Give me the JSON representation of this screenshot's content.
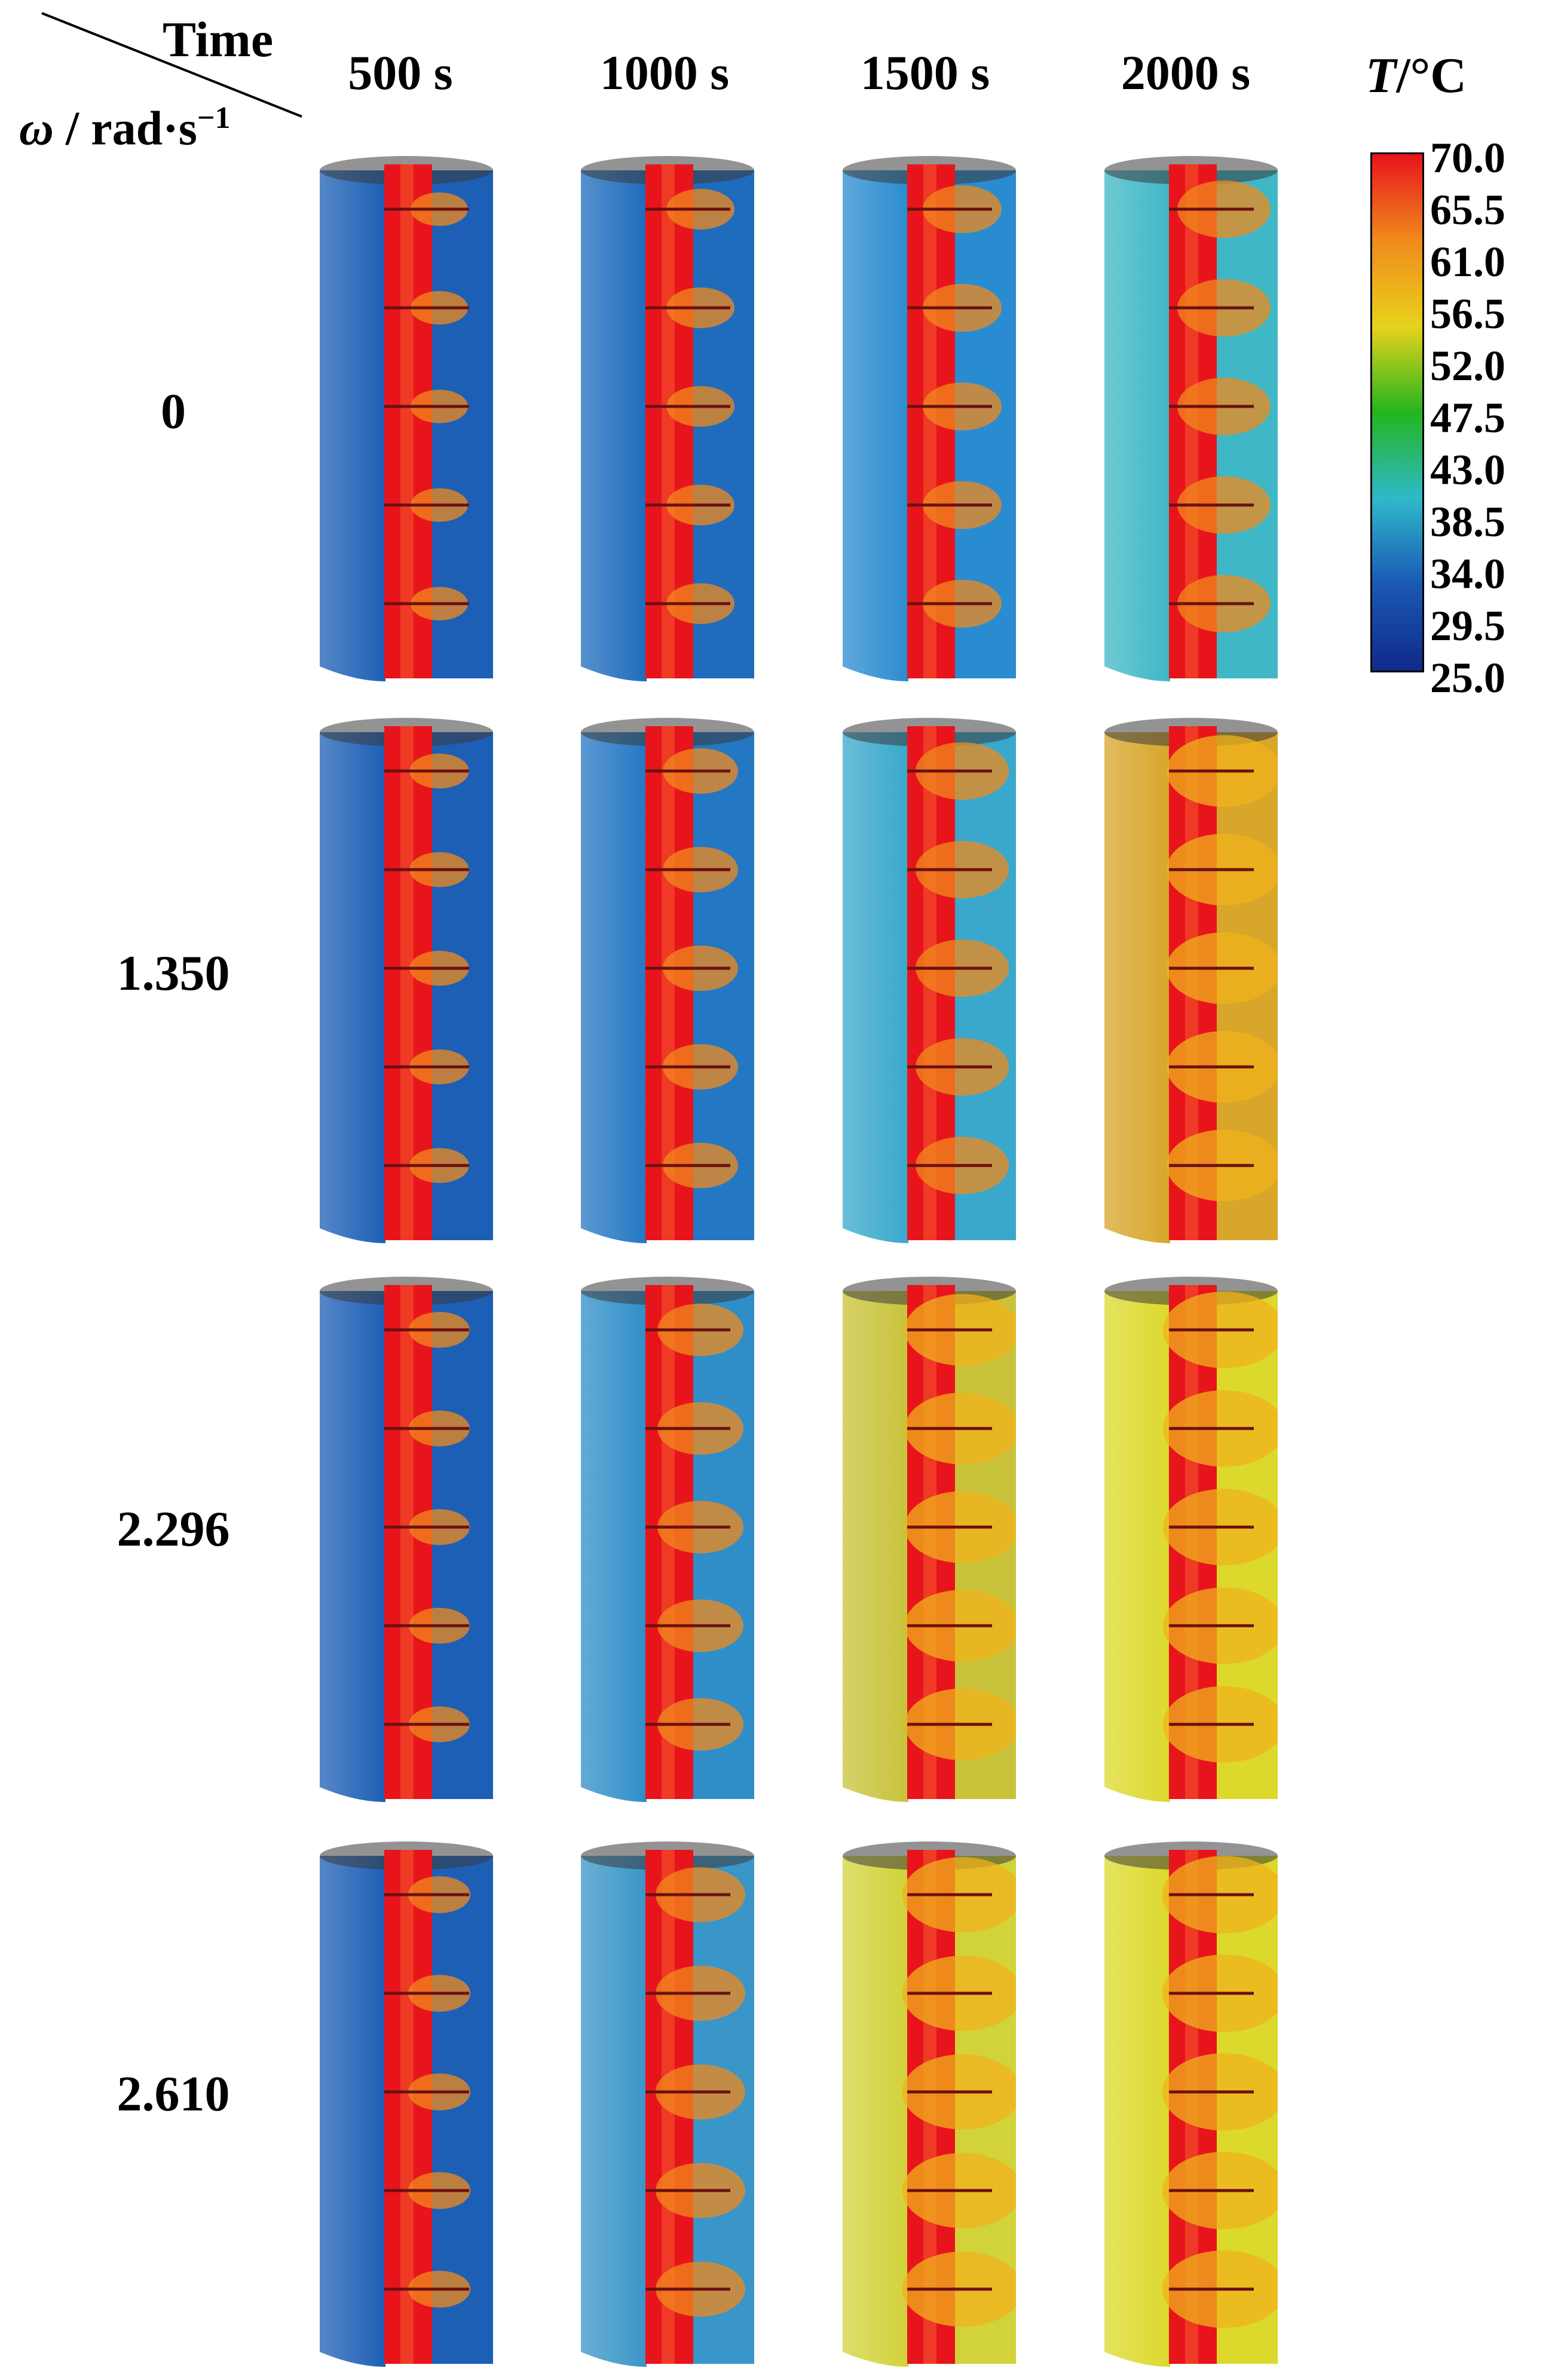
{
  "header": {
    "time_label": "Time",
    "omega_symbol": "ω",
    "omega_unit": " / rad·s",
    "omega_exp": "−1"
  },
  "columns": [
    "500 s",
    "1000 s",
    "1500 s",
    "2000 s"
  ],
  "rows": [
    "0",
    "1.350",
    "2.296",
    "2.610"
  ],
  "legend": {
    "title_var": "T",
    "title_unit": "/°C",
    "ticks": [
      "70.0",
      "65.5",
      "61.0",
      "56.5",
      "52.0",
      "47.5",
      "43.0",
      "38.5",
      "34.0",
      "29.5",
      "25.0"
    ],
    "colors": [
      "#e8141c",
      "#f08a1c",
      "#e8d21c",
      "#23b51e",
      "#2fb9c9",
      "#1a58b4",
      "#0f2a8a"
    ]
  },
  "cells": [
    [
      {
        "bg": "#1d5fb5",
        "hot": 0.05
      },
      {
        "bg": "#1f6cbd",
        "hot": 0.2
      },
      {
        "bg": "#2a8cd0",
        "hot": 0.35
      },
      {
        "bg": "#3fb7c6",
        "hot": 0.55
      }
    ],
    [
      {
        "bg": "#1d5fb5",
        "hot": 0.08
      },
      {
        "bg": "#2477c3",
        "hot": 0.3
      },
      {
        "bg": "#39a8cc",
        "hot": 0.55
      },
      {
        "bg": "#d7a62a",
        "hot": 0.85
      }
    ],
    [
      {
        "bg": "#1d5fb5",
        "hot": 0.1
      },
      {
        "bg": "#2f8ec8",
        "hot": 0.45
      },
      {
        "bg": "#c8c33a",
        "hot": 0.85
      },
      {
        "bg": "#dcd92c",
        "hot": 0.95
      }
    ],
    [
      {
        "bg": "#1d5fb5",
        "hot": 0.12
      },
      {
        "bg": "#3a95c8",
        "hot": 0.5
      },
      {
        "bg": "#d2d23a",
        "hot": 0.92
      },
      {
        "bg": "#dcd92c",
        "hot": 0.97
      }
    ]
  ]
}
